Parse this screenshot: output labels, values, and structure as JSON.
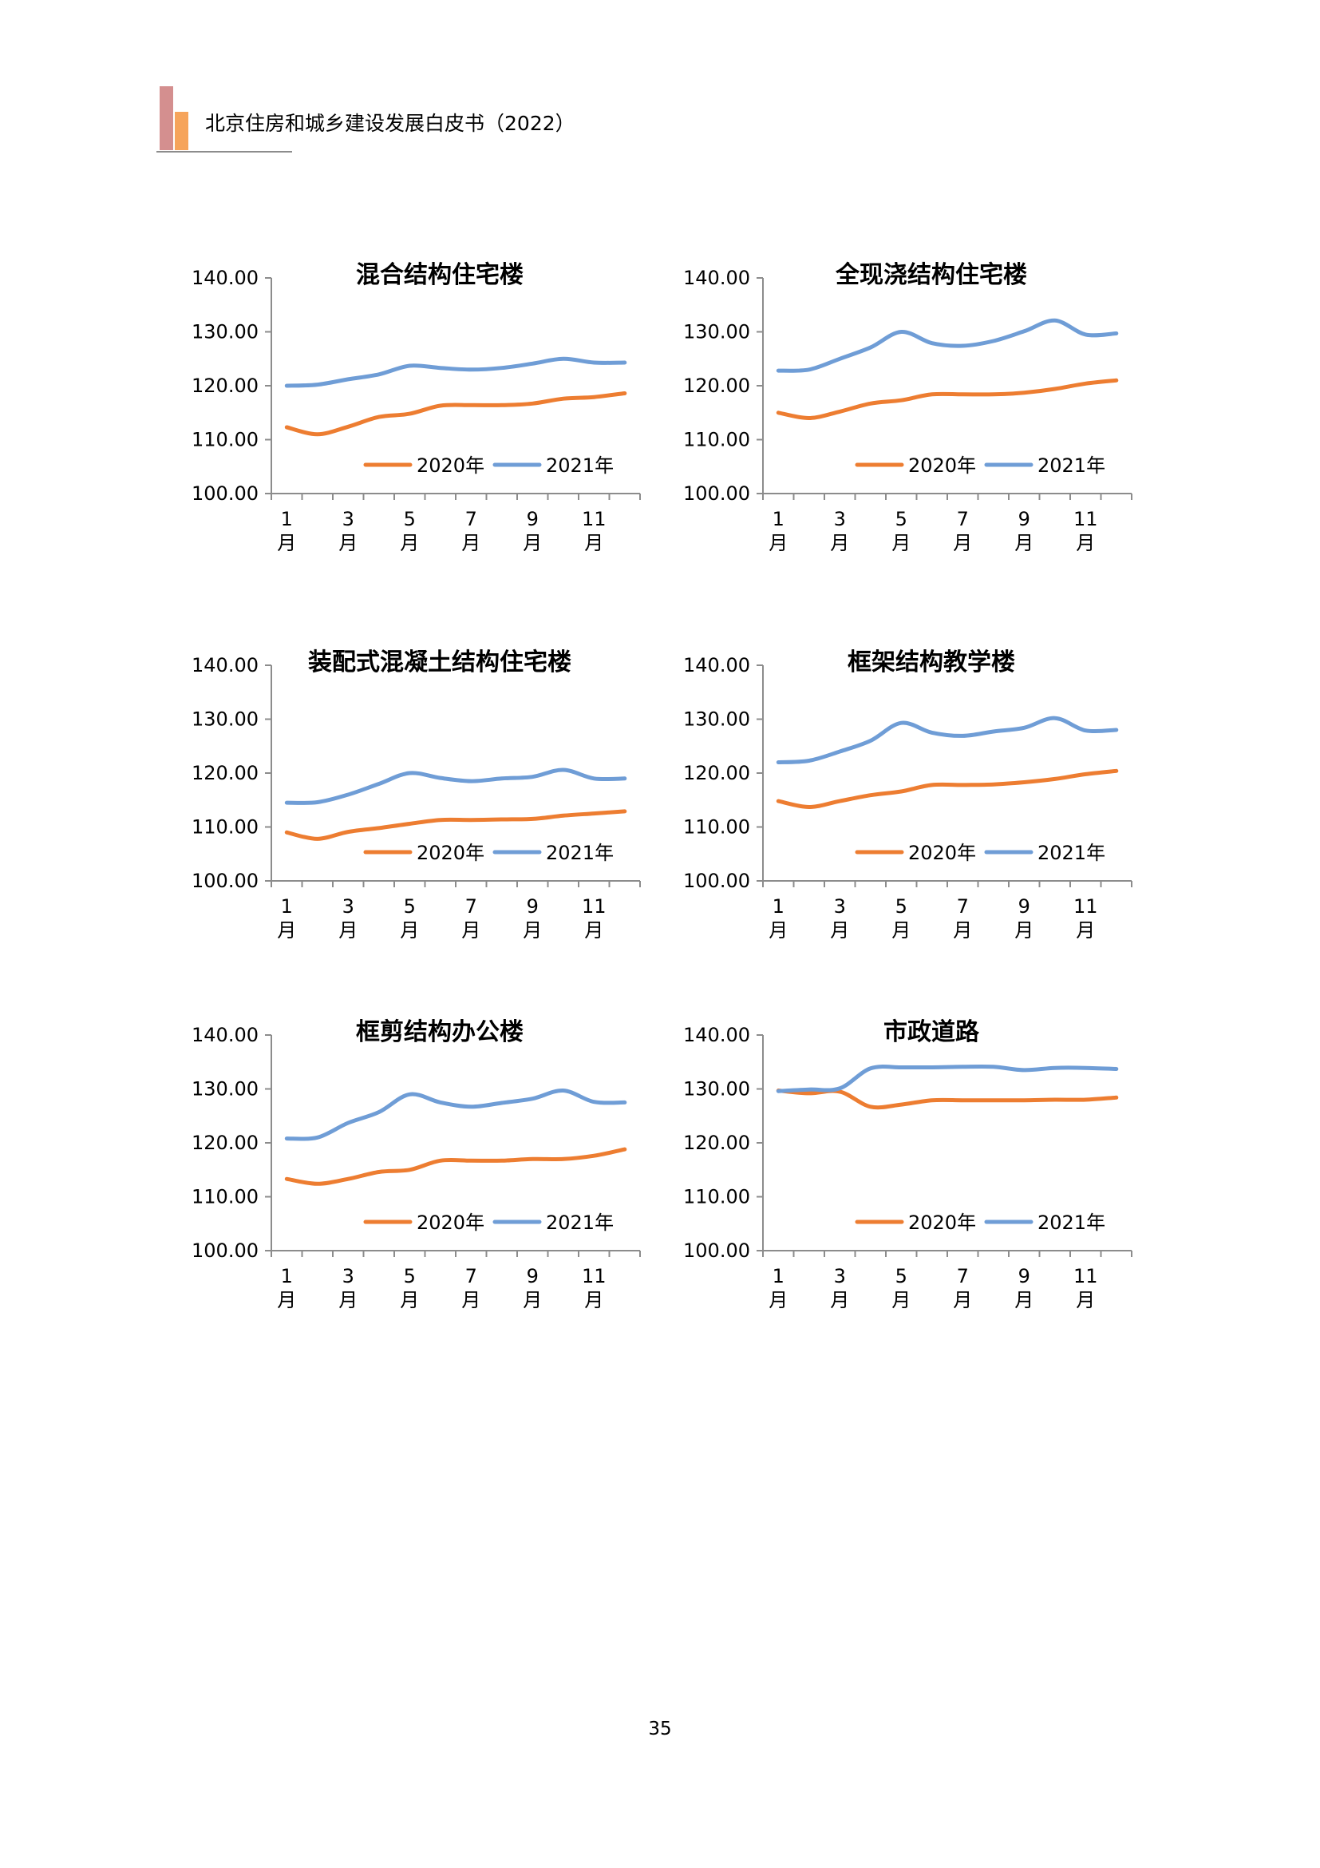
{
  "header": {
    "title": "北京住房和城乡建设发展白皮书（2022）"
  },
  "page_number": "35",
  "colors": {
    "series_2020": "#ED7D31",
    "series_2021": "#6F9DD6",
    "axis": "#8c8c8c"
  },
  "chart_data": [
    {
      "type": "line",
      "title": "混合结构住宅楼",
      "x": [
        1,
        2,
        3,
        4,
        5,
        6,
        7,
        8,
        9,
        10,
        11,
        12
      ],
      "x_tick_labels": [
        "1",
        "3",
        "5",
        "7",
        "9",
        "11"
      ],
      "x_tick_unit": "月",
      "ylim": [
        100,
        140
      ],
      "y_tick_labels": [
        "100.00",
        "110.00",
        "120.00",
        "130.00",
        "140.00"
      ],
      "legend": "bottom-inside",
      "grid": false,
      "series": [
        {
          "name": "2020年",
          "values": [
            112.3,
            111.0,
            112.4,
            114.2,
            114.8,
            116.3,
            116.4,
            116.4,
            116.7,
            117.6,
            117.9,
            118.6
          ]
        },
        {
          "name": "2021年",
          "values": [
            120.0,
            120.2,
            121.2,
            122.1,
            123.7,
            123.3,
            123.0,
            123.3,
            124.1,
            125.0,
            124.3,
            124.3
          ]
        }
      ]
    },
    {
      "type": "line",
      "title": "全现浇结构住宅楼",
      "x": [
        1,
        2,
        3,
        4,
        5,
        6,
        7,
        8,
        9,
        10,
        11,
        12
      ],
      "x_tick_labels": [
        "1",
        "3",
        "5",
        "7",
        "9",
        "11"
      ],
      "x_tick_unit": "月",
      "ylim": [
        100,
        140
      ],
      "y_tick_labels": [
        "100.00",
        "110.00",
        "120.00",
        "130.00",
        "140.00"
      ],
      "legend": "bottom-inside",
      "grid": false,
      "series": [
        {
          "name": "2020年",
          "values": [
            115.0,
            114.0,
            115.2,
            116.7,
            117.3,
            118.4,
            118.4,
            118.4,
            118.7,
            119.4,
            120.4,
            121.0
          ]
        },
        {
          "name": "2021年",
          "values": [
            122.8,
            123.0,
            125.0,
            127.1,
            130.0,
            127.9,
            127.4,
            128.3,
            130.1,
            132.1,
            129.5,
            129.7
          ]
        }
      ]
    },
    {
      "type": "line",
      "title": "装配式混凝土结构住宅楼",
      "x": [
        1,
        2,
        3,
        4,
        5,
        6,
        7,
        8,
        9,
        10,
        11,
        12
      ],
      "x_tick_labels": [
        "1",
        "3",
        "5",
        "7",
        "9",
        "11"
      ],
      "x_tick_unit": "月",
      "ylim": [
        100,
        140
      ],
      "y_tick_labels": [
        "100.00",
        "110.00",
        "120.00",
        "130.00",
        "140.00"
      ],
      "legend": "bottom-inside",
      "grid": false,
      "series": [
        {
          "name": "2020年",
          "values": [
            109.0,
            107.8,
            109.1,
            109.8,
            110.6,
            111.3,
            111.3,
            111.4,
            111.5,
            112.1,
            112.5,
            112.9
          ]
        },
        {
          "name": "2021年",
          "values": [
            114.5,
            114.6,
            116.0,
            118.0,
            120.0,
            119.1,
            118.5,
            119.0,
            119.3,
            120.6,
            119.0,
            119.0
          ]
        }
      ]
    },
    {
      "type": "line",
      "title": "框架结构教学楼",
      "x": [
        1,
        2,
        3,
        4,
        5,
        6,
        7,
        8,
        9,
        10,
        11,
        12
      ],
      "x_tick_labels": [
        "1",
        "3",
        "5",
        "7",
        "9",
        "11"
      ],
      "x_tick_unit": "月",
      "ylim": [
        100,
        140
      ],
      "y_tick_labels": [
        "100.00",
        "110.00",
        "120.00",
        "130.00",
        "140.00"
      ],
      "legend": "bottom-inside",
      "grid": false,
      "series": [
        {
          "name": "2020年",
          "values": [
            114.8,
            113.7,
            114.8,
            115.9,
            116.6,
            117.8,
            117.8,
            117.9,
            118.3,
            118.9,
            119.8,
            120.4
          ]
        },
        {
          "name": "2021年",
          "values": [
            122.0,
            122.3,
            124.0,
            126.0,
            129.3,
            127.5,
            126.9,
            127.7,
            128.4,
            130.2,
            127.9,
            128.0
          ]
        }
      ]
    },
    {
      "type": "line",
      "title": "框剪结构办公楼",
      "x": [
        1,
        2,
        3,
        4,
        5,
        6,
        7,
        8,
        9,
        10,
        11,
        12
      ],
      "x_tick_labels": [
        "1",
        "3",
        "5",
        "7",
        "9",
        "11"
      ],
      "x_tick_unit": "月",
      "ylim": [
        100,
        140
      ],
      "y_tick_labels": [
        "100.00",
        "110.00",
        "120.00",
        "130.00",
        "140.00"
      ],
      "legend": "bottom-inside",
      "grid": false,
      "series": [
        {
          "name": "2020年",
          "values": [
            113.3,
            112.4,
            113.3,
            114.6,
            115.0,
            116.7,
            116.7,
            116.7,
            117.0,
            117.0,
            117.6,
            118.8
          ]
        },
        {
          "name": "2021年",
          "values": [
            120.8,
            121.0,
            123.7,
            125.7,
            129.0,
            127.5,
            126.7,
            127.4,
            128.2,
            129.7,
            127.6,
            127.5
          ]
        }
      ]
    },
    {
      "type": "line",
      "title": "市政道路",
      "x": [
        1,
        2,
        3,
        4,
        5,
        6,
        7,
        8,
        9,
        10,
        11,
        12
      ],
      "x_tick_labels": [
        "1",
        "3",
        "5",
        "7",
        "9",
        "11"
      ],
      "x_tick_unit": "月",
      "ylim": [
        100,
        140
      ],
      "y_tick_labels": [
        "100.00",
        "110.00",
        "120.00",
        "130.00",
        "140.00"
      ],
      "legend": "bottom-inside",
      "grid": false,
      "series": [
        {
          "name": "2020年",
          "values": [
            129.7,
            129.2,
            129.5,
            126.7,
            127.1,
            127.9,
            127.9,
            127.9,
            127.9,
            128.0,
            128.0,
            128.4
          ]
        },
        {
          "name": "2021年",
          "values": [
            129.6,
            129.9,
            130.1,
            133.8,
            134.0,
            134.0,
            134.1,
            134.1,
            133.5,
            133.9,
            133.9,
            133.7
          ]
        }
      ]
    }
  ]
}
